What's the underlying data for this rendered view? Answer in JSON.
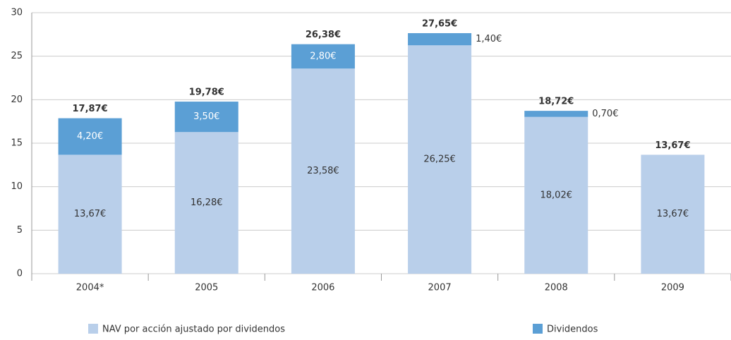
{
  "chart_data": {
    "type": "stacked_bar",
    "categories": [
      "2004*",
      "2005",
      "2006",
      "2007",
      "2008",
      "2009"
    ],
    "series": [
      {
        "name": "NAV por acción ajustado por dividendos",
        "color": "#b9cfea",
        "values": [
          13.67,
          16.28,
          23.58,
          26.25,
          18.02,
          13.67
        ],
        "value_labels": [
          "13,67€",
          "16,28€",
          "23,58€",
          "26,25€",
          "18,02€",
          "13,67€"
        ]
      },
      {
        "name": "Dividendos",
        "color": "#5b9fd5",
        "values": [
          4.2,
          3.5,
          2.8,
          1.4,
          0.7,
          null
        ],
        "value_labels": [
          "4,20€",
          "3,50€",
          "2,80€",
          "1,40€",
          "0,70€",
          null
        ]
      }
    ],
    "total_labels": [
      "17,87€",
      "19,78€",
      "26,38€",
      "27,65€",
      "18,72€",
      "13,67€"
    ],
    "ylim": [
      0,
      30
    ],
    "yticks": [
      0,
      5,
      10,
      15,
      20,
      25,
      30
    ],
    "grid": true
  }
}
